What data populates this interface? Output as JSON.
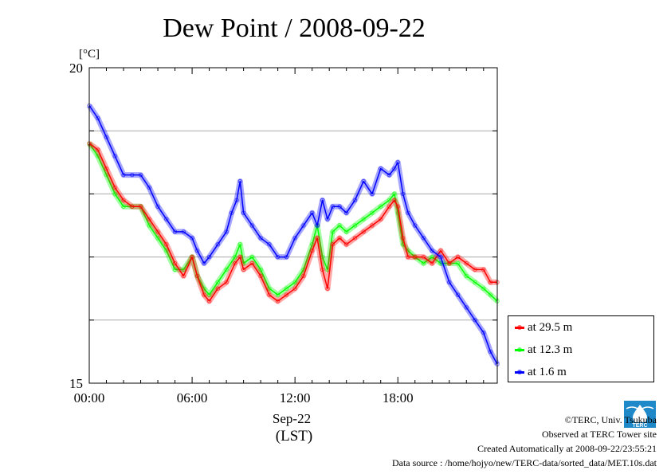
{
  "chart_data": {
    "type": "line",
    "title": "Dew Point / 2008-09-22",
    "ylabel": "[°C]",
    "xlabel_date": "Sep-22",
    "xlabel_tz": "(LST)",
    "ylim": [
      15,
      20
    ],
    "xlim": [
      0,
      23.8
    ],
    "y_ticks": [
      15,
      20
    ],
    "x_ticks": [
      {
        "value": 0,
        "label": "00:00"
      },
      {
        "value": 6,
        "label": "06:00"
      },
      {
        "value": 12,
        "label": "12:00"
      },
      {
        "value": 18,
        "label": "18:00"
      }
    ],
    "grid": true,
    "legend_position": "right",
    "series": [
      {
        "name": "at 29.5 m",
        "color": "#ff0000",
        "x": [
          0,
          0.5,
          1.0,
          1.5,
          2.0,
          2.5,
          3.0,
          3.5,
          4.0,
          4.5,
          5.0,
          5.5,
          6.0,
          6.3,
          6.7,
          7.0,
          7.5,
          8.0,
          8.5,
          8.8,
          9.0,
          9.5,
          10.0,
          10.5,
          11.0,
          11.5,
          12.0,
          12.5,
          13.0,
          13.3,
          13.6,
          13.9,
          14.2,
          14.6,
          15.0,
          15.5,
          16.0,
          16.5,
          17.0,
          17.5,
          17.8,
          18.0,
          18.3,
          18.6,
          19.0,
          19.5,
          20.0,
          20.5,
          21.0,
          21.5,
          22.0,
          22.5,
          23.0,
          23.4,
          23.8
        ],
        "values": [
          18.8,
          18.7,
          18.4,
          18.1,
          17.9,
          17.8,
          17.8,
          17.6,
          17.4,
          17.2,
          16.9,
          16.7,
          17.0,
          16.7,
          16.4,
          16.3,
          16.5,
          16.6,
          16.9,
          17.0,
          16.8,
          16.9,
          16.7,
          16.4,
          16.3,
          16.4,
          16.5,
          16.7,
          17.1,
          17.3,
          16.8,
          16.5,
          17.2,
          17.3,
          17.2,
          17.3,
          17.4,
          17.5,
          17.6,
          17.8,
          17.9,
          17.8,
          17.3,
          17.0,
          17.0,
          17.0,
          16.9,
          17.1,
          16.9,
          17.0,
          16.9,
          16.8,
          16.8,
          16.6,
          16.6
        ]
      },
      {
        "name": "at 12.3 m",
        "color": "#00ff00",
        "x": [
          0,
          0.5,
          1.0,
          1.5,
          2.0,
          2.5,
          3.0,
          3.5,
          4.0,
          4.5,
          5.0,
          5.5,
          6.0,
          6.3,
          6.7,
          7.0,
          7.5,
          8.0,
          8.5,
          8.8,
          9.0,
          9.5,
          10.0,
          10.5,
          11.0,
          11.5,
          12.0,
          12.5,
          13.0,
          13.3,
          13.6,
          13.9,
          14.2,
          14.6,
          15.0,
          15.5,
          16.0,
          16.5,
          17.0,
          17.5,
          17.8,
          18.0,
          18.3,
          18.6,
          19.0,
          19.5,
          20.0,
          20.5,
          21.0,
          21.5,
          22.0,
          22.5,
          23.0,
          23.4,
          23.8
        ],
        "values": [
          18.8,
          18.6,
          18.3,
          18.0,
          17.8,
          17.8,
          17.8,
          17.5,
          17.3,
          17.1,
          16.8,
          16.8,
          17.0,
          16.7,
          16.5,
          16.4,
          16.6,
          16.8,
          17.0,
          17.2,
          16.9,
          17.0,
          16.8,
          16.5,
          16.4,
          16.5,
          16.6,
          16.8,
          17.2,
          17.5,
          17.0,
          16.8,
          17.4,
          17.5,
          17.4,
          17.5,
          17.6,
          17.7,
          17.8,
          17.9,
          18.0,
          17.7,
          17.2,
          17.1,
          17.0,
          16.9,
          17.0,
          16.9,
          16.9,
          16.9,
          16.7,
          16.6,
          16.5,
          16.4,
          16.3
        ]
      },
      {
        "name": "at 1.6 m",
        "color": "#0000ff",
        "x": [
          0,
          0.5,
          1.0,
          1.5,
          2.0,
          2.5,
          3.0,
          3.5,
          4.0,
          4.5,
          5.0,
          5.5,
          6.0,
          6.3,
          6.7,
          7.0,
          7.5,
          8.0,
          8.3,
          8.6,
          8.8,
          9.0,
          9.5,
          10.0,
          10.5,
          11.0,
          11.5,
          12.0,
          12.5,
          13.0,
          13.3,
          13.6,
          13.9,
          14.2,
          14.6,
          15.0,
          15.5,
          16.0,
          16.5,
          17.0,
          17.5,
          17.8,
          18.0,
          18.3,
          18.6,
          19.0,
          19.5,
          20.0,
          20.5,
          21.0,
          21.5,
          22.0,
          22.5,
          23.0,
          23.4,
          23.8
        ],
        "values": [
          19.4,
          19.2,
          18.9,
          18.6,
          18.3,
          18.3,
          18.3,
          18.1,
          17.8,
          17.6,
          17.4,
          17.4,
          17.3,
          17.1,
          16.9,
          17.0,
          17.2,
          17.4,
          17.7,
          17.9,
          18.2,
          17.7,
          17.5,
          17.3,
          17.2,
          17.0,
          17.0,
          17.3,
          17.5,
          17.7,
          17.5,
          17.9,
          17.6,
          17.8,
          17.8,
          17.7,
          17.9,
          18.2,
          18.0,
          18.4,
          18.3,
          18.4,
          18.5,
          18.0,
          17.7,
          17.5,
          17.3,
          17.1,
          17.0,
          16.6,
          16.4,
          16.2,
          16.0,
          15.8,
          15.5,
          15.3
        ]
      }
    ]
  },
  "credits": {
    "line1": "©TERC, Univ. Tsukuba",
    "line2": "Observed at TERC Tower site",
    "line3": "Created Automatically at 2008-09-22/23:55:21",
    "line4": "Data source : /home/hojyo/new/TERC-data/sorted_data/MET.10s.dat"
  },
  "logo": {
    "text": "TERC",
    "color": "#1e88c8"
  }
}
